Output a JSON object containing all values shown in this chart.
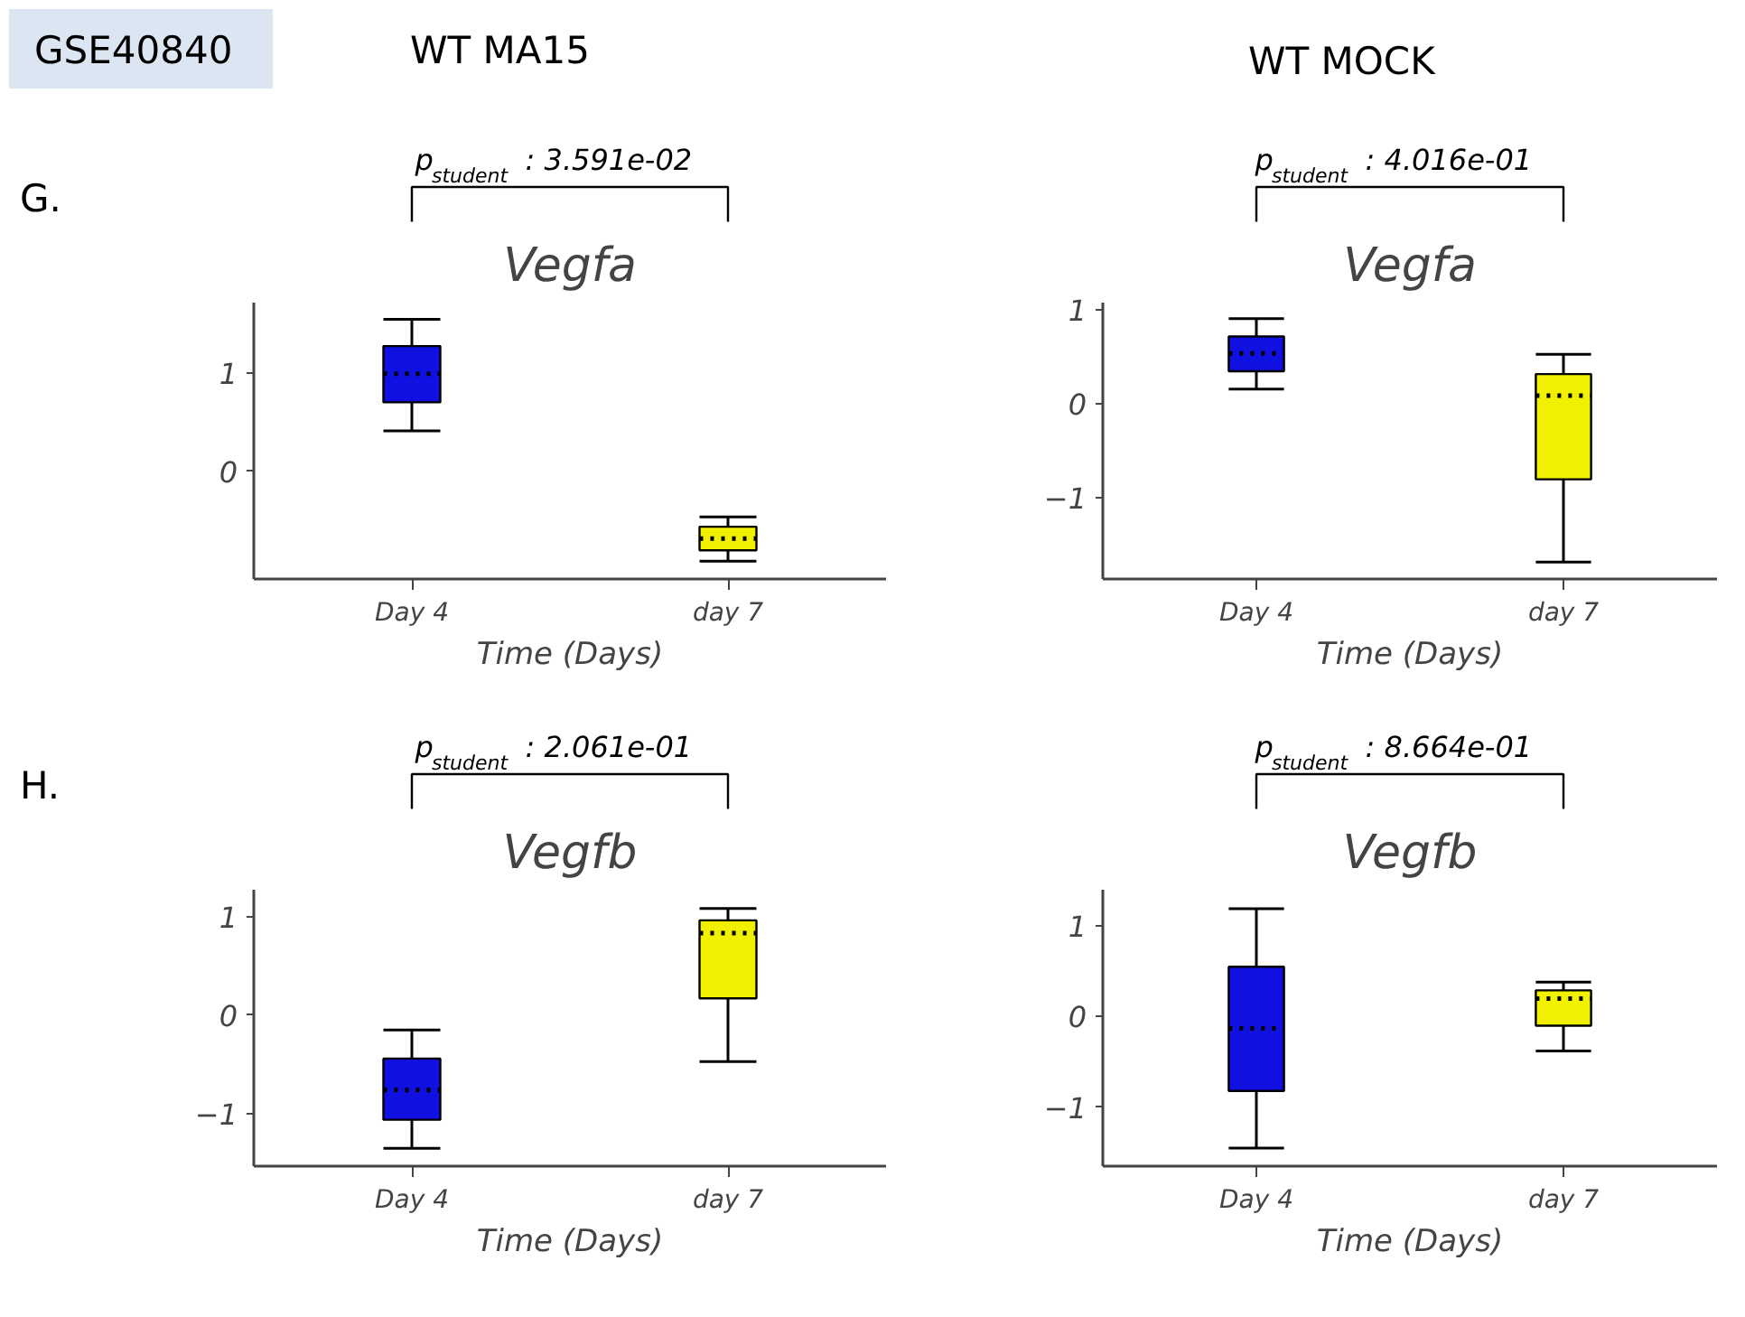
{
  "chart_data": [
    {
      "type": "box",
      "title": "Vegfa",
      "subtitle": "WT MA15",
      "xlabel": "Time (Days)",
      "categories": [
        "Day 4",
        "day 7"
      ],
      "colors": [
        "#1010e0",
        "#f0f000"
      ],
      "boxes": [
        {
          "low": 0.41,
          "q1": 0.7,
          "median": 0.99,
          "q3": 1.27,
          "high": 1.54
        },
        {
          "low": -0.91,
          "q1": -0.8,
          "median": -0.68,
          "q3": -0.56,
          "high": -0.46
        }
      ],
      "ylim": [
        -1.09,
        1.71
      ],
      "yticks": [
        0,
        1
      ],
      "grid": false,
      "annotations": [
        "GSE40840",
        "G.",
        "p$_{student}$ : 3.591e-02"
      ]
    },
    {
      "type": "box",
      "title": "Vegfa",
      "subtitle": "WT MOCK",
      "xlabel": "Time (Days)",
      "categories": [
        "Day 4",
        "day 7"
      ],
      "colors": [
        "#1010e0",
        "#f0f000"
      ],
      "boxes": [
        {
          "low": 0.16,
          "q1": 0.35,
          "median": 0.54,
          "q3": 0.72,
          "high": 0.91
        },
        {
          "low": -1.68,
          "q1": -0.8,
          "median": 0.09,
          "q3": 0.32,
          "high": 0.53
        }
      ],
      "ylim": [
        -1.86,
        1.08
      ],
      "yticks": [
        -1,
        0,
        1
      ],
      "grid": false,
      "annotations": [
        "p$_{student}$ : 4.016e-01"
      ]
    },
    {
      "type": "box",
      "title": "Vegfb",
      "xlabel": "Time (Days)",
      "categories": [
        "Day 4",
        "day 7"
      ],
      "colors": [
        "#1010e0",
        "#f0f000"
      ],
      "boxes": [
        {
          "low": -1.35,
          "q1": -1.06,
          "median": -0.76,
          "q3": -0.44,
          "high": -0.15
        },
        {
          "low": -0.47,
          "q1": 0.17,
          "median": 0.83,
          "q3": 0.96,
          "high": 1.08
        }
      ],
      "ylim": [
        -1.53,
        1.27
      ],
      "yticks": [
        -1,
        0,
        1
      ],
      "grid": false,
      "annotations": [
        "H.",
        "p$_{student}$ : 2.061e-01"
      ]
    },
    {
      "type": "box",
      "title": "Vegfb",
      "xlabel": "Time (Days)",
      "categories": [
        "Day 4",
        "day 7"
      ],
      "colors": [
        "#1010e0",
        "#f0f000"
      ],
      "boxes": [
        {
          "low": -1.45,
          "q1": -0.82,
          "median": -0.13,
          "q3": 0.55,
          "high": 1.19
        },
        {
          "low": -0.38,
          "q1": -0.1,
          "median": 0.2,
          "q3": 0.29,
          "high": 0.38
        }
      ],
      "ylim": [
        -1.65,
        1.4
      ],
      "yticks": [
        -1,
        0,
        1
      ],
      "grid": false,
      "annotations": [
        "p$_{student}$ : 8.664e-01"
      ]
    }
  ]
}
